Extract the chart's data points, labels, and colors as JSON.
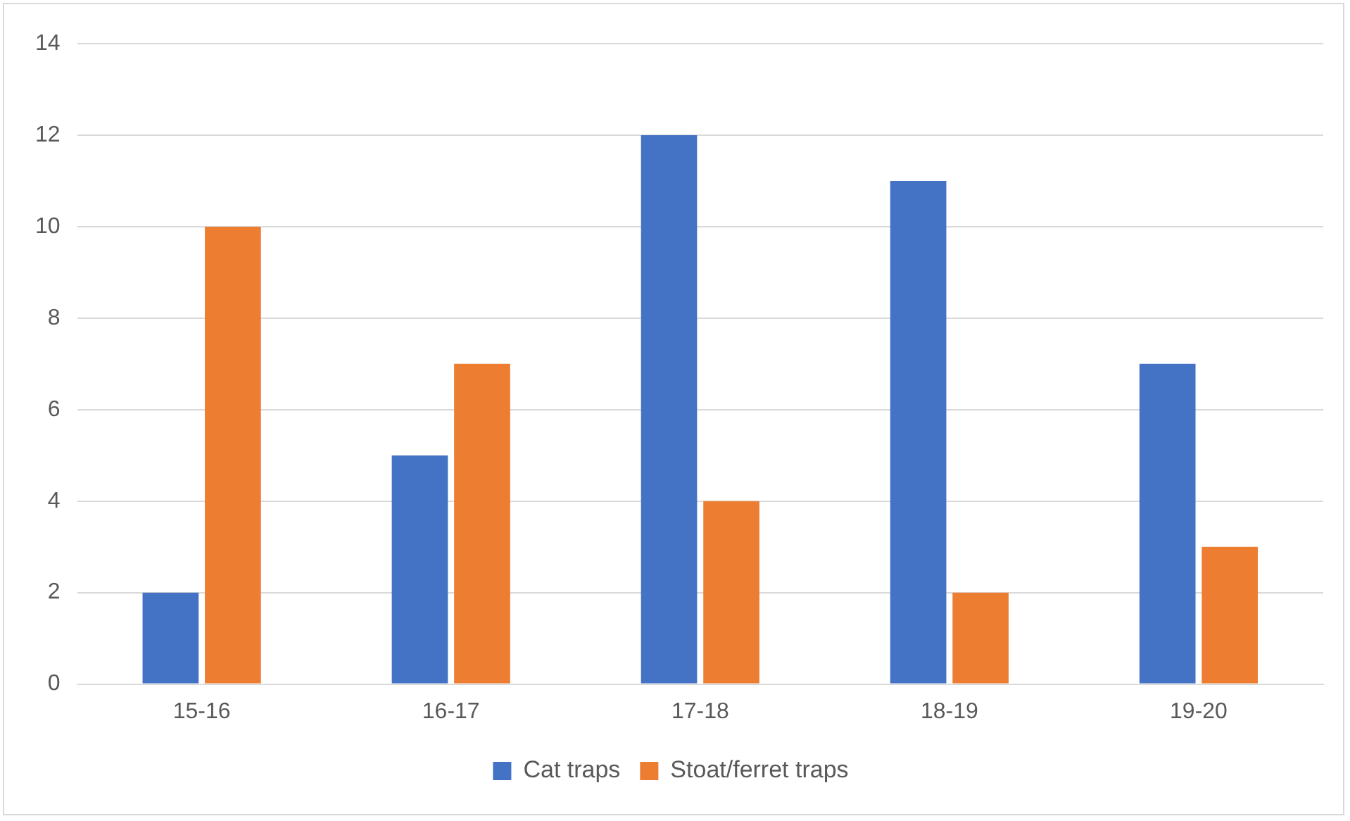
{
  "chart_data": {
    "type": "bar",
    "categories": [
      "15-16",
      "16-17",
      "17-18",
      "18-19",
      "19-20"
    ],
    "series": [
      {
        "name": "Cat traps",
        "color": "#4472c4",
        "values": [
          2,
          5,
          12,
          11,
          7
        ]
      },
      {
        "name": "Stoat/ferret traps",
        "color": "#ed7d31",
        "values": [
          10,
          7,
          4,
          2,
          3
        ]
      }
    ],
    "ylim": [
      0,
      14
    ],
    "yticks": [
      0,
      2,
      4,
      6,
      8,
      10,
      12,
      14
    ],
    "grid": "y",
    "legend": "bottom"
  }
}
